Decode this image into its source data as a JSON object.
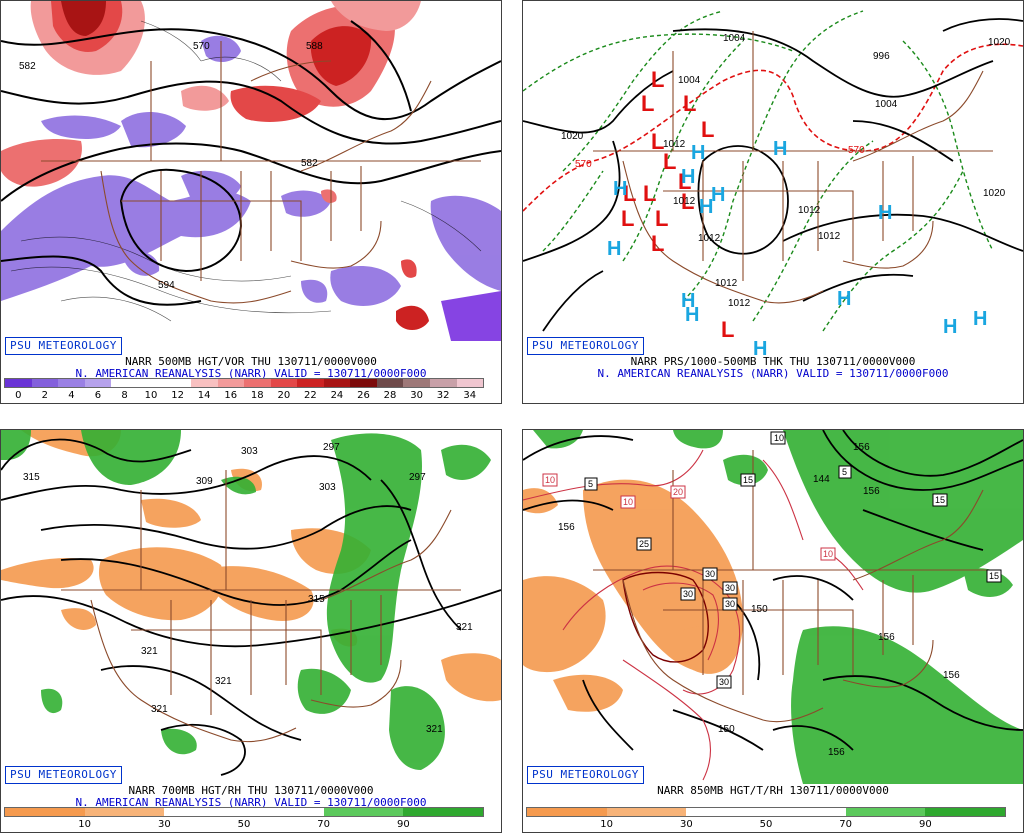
{
  "colors": {
    "border_brown": "#8b4a2b",
    "contour": "#000000",
    "high": "#1aa6e0",
    "low": "#e01010",
    "dry": "#f5a35a",
    "moist": "#33b033",
    "vort_neg": "#8f6fe0",
    "vort_pos": "#e83a3a"
  },
  "panels": [
    {
      "badge": "PSU METEOROLOGY",
      "caption1": "NARR 500MB HGT/VOR THU 130711/0000V000",
      "caption2": "N. AMERICAN REANALYSIS (NARR) VALID = 130711/0000F000",
      "colorbar": {
        "colors": [
          "#6a34d6",
          "#8360dc",
          "#9a80e4",
          "#b6a2ec",
          "#ffffff",
          "#ffffff",
          "#ffffff",
          "#f8c0c0",
          "#f29a9a",
          "#ec7070",
          "#e34848",
          "#cc2222",
          "#a81414",
          "#7c0a0a",
          "#6e4a4a",
          "#9e7878",
          "#c8a0a8",
          "#f0c6d0"
        ],
        "ticks": [
          "0",
          "2",
          "4",
          "6",
          "8",
          "10",
          "12",
          "14",
          "16",
          "18",
          "20",
          "22",
          "24",
          "26",
          "28",
          "30",
          "32",
          "34"
        ]
      },
      "contour_labels": [
        "582",
        "570",
        "588",
        "582",
        "594"
      ]
    },
    {
      "badge": "PSU METEOROLOGY",
      "caption1": "NARR PRS/1000-500MB THK THU 130711/0000V000",
      "caption2": "N. AMERICAN REANALYSIS (NARR) VALID = 130711/0000F000",
      "contour_labels": [
        "1004",
        "996",
        "1020",
        "1004",
        "1004",
        "1020",
        "1020",
        "1012",
        "1012",
        "1012",
        "1012",
        "1012",
        "1012",
        "1012"
      ],
      "thickness_labels": [
        "570",
        "570"
      ],
      "highs": [
        "H",
        "H",
        "H",
        "H",
        "H",
        "H",
        "H",
        "H",
        "H",
        "H",
        "H",
        "H",
        "H",
        "H"
      ],
      "lows": [
        "L",
        "L",
        "L",
        "L",
        "L",
        "L",
        "L",
        "L",
        "L",
        "L",
        "L",
        "L",
        "L",
        "L"
      ]
    },
    {
      "badge": "PSU METEOROLOGY",
      "caption1": "NARR 700MB HGT/RH THU 130711/0000V000",
      "caption2": "N. AMERICAN REANALYSIS (NARR) VALID = 130711/0000F000",
      "colorbar": {
        "colors": [
          "#f59a4e",
          "#f7b378",
          "#ffffff",
          "#ffffff",
          "#5cc95c",
          "#2ea82e"
        ],
        "ticks": [
          "10",
          "30",
          "50",
          "70",
          "90"
        ]
      },
      "contour_labels": [
        "315",
        "309",
        "303",
        "297",
        "303",
        "297",
        "315",
        "321",
        "321",
        "321",
        "321",
        "321"
      ]
    },
    {
      "badge": "PSU METEOROLOGY",
      "caption1": "NARR 850MB HGT/T/RH 130711/0000V000",
      "colorbar": {
        "colors": [
          "#f59a4e",
          "#f7b378",
          "#ffffff",
          "#ffffff",
          "#5cc95c",
          "#2ea82e"
        ],
        "ticks": [
          "10",
          "30",
          "50",
          "70",
          "90"
        ]
      },
      "contour_labels": [
        "156",
        "144",
        "156",
        "156",
        "156",
        "150",
        "156",
        "150",
        "156"
      ],
      "temp_boxes": [
        "10",
        "5",
        "15",
        "15",
        "5",
        "15",
        "10",
        "20",
        "25",
        "10",
        "10",
        "30",
        "30",
        "30",
        "30",
        "15",
        "30"
      ]
    }
  ]
}
